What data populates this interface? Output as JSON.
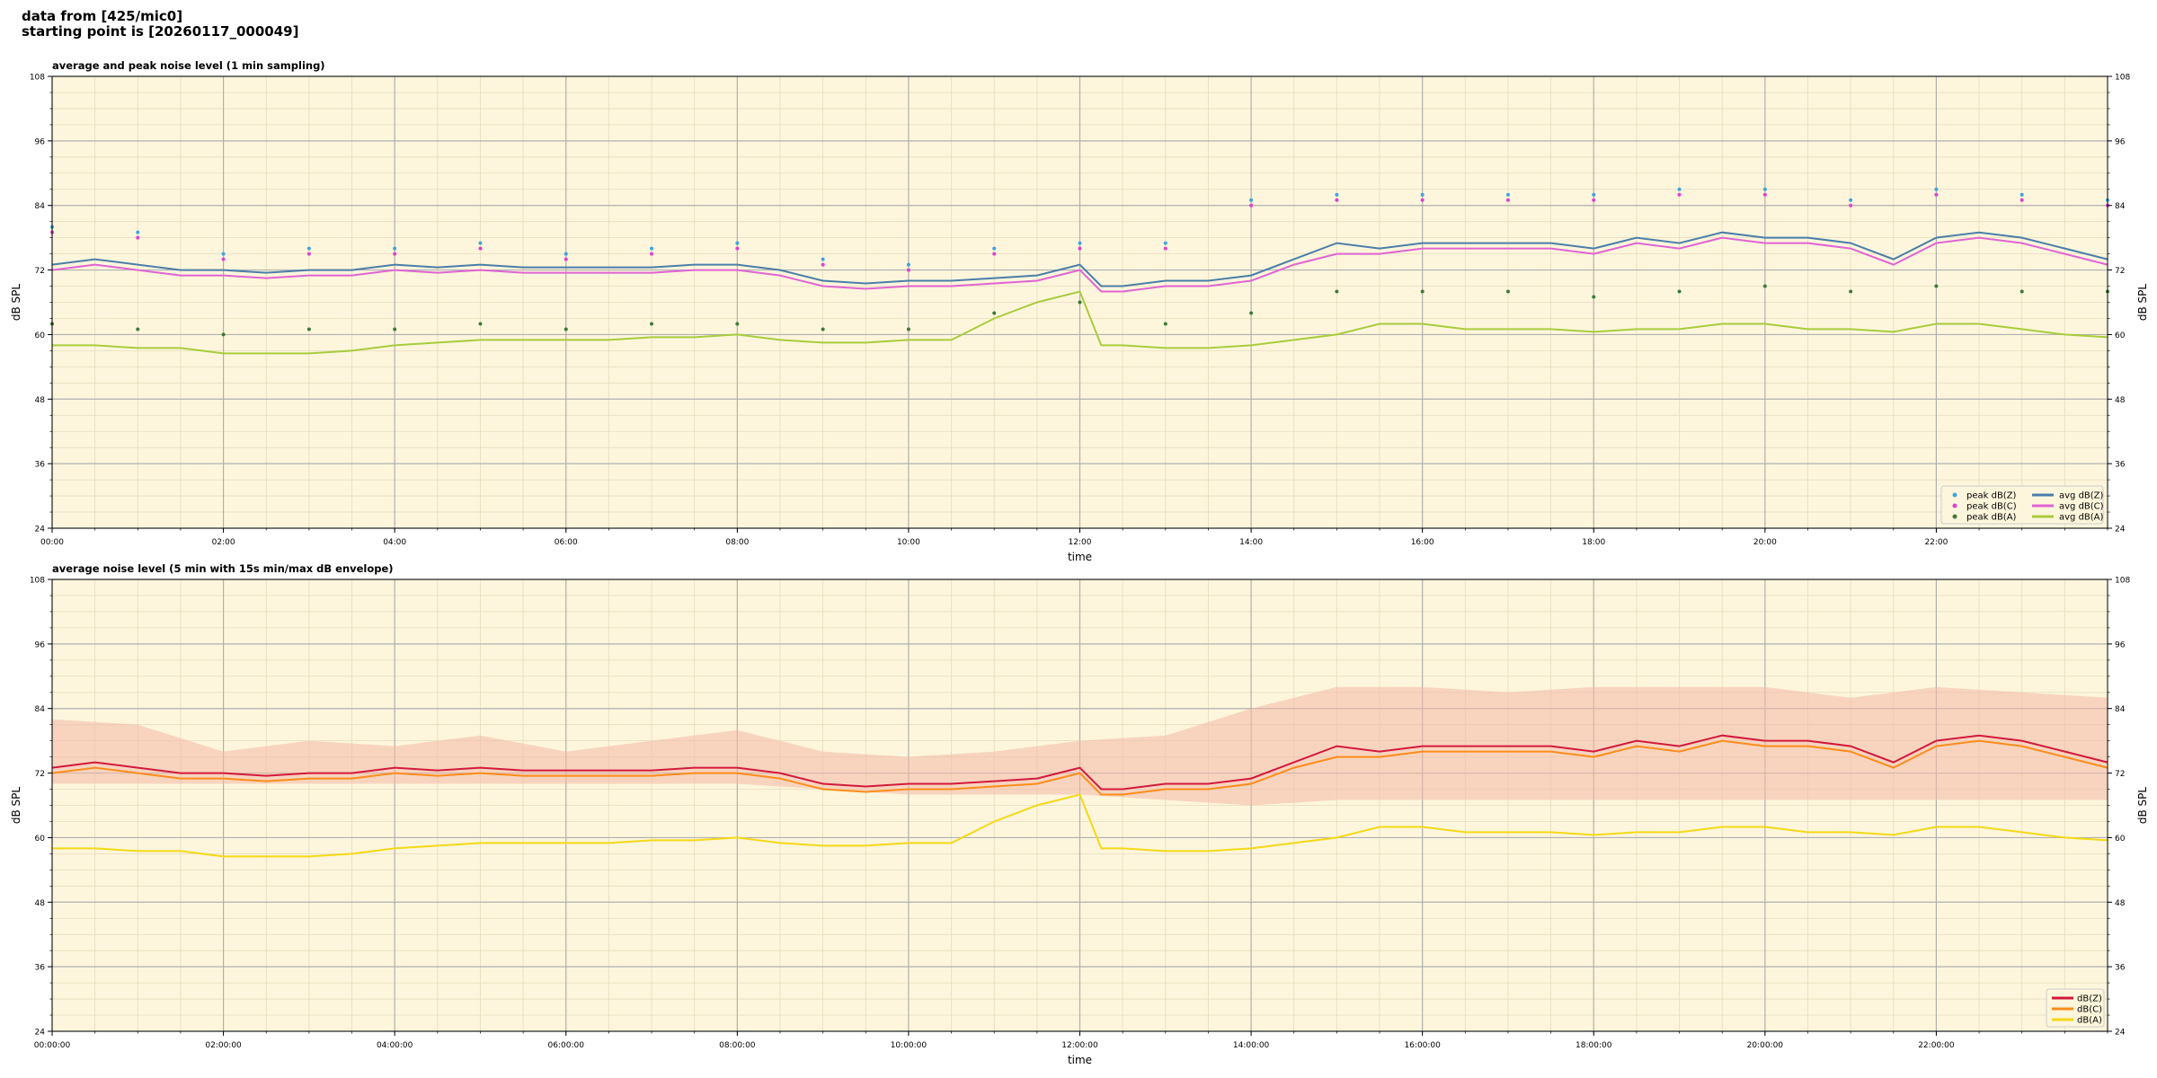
{
  "header": {
    "line1": "data from [425/mic0]",
    "line2": "starting point is [20260117_000049]"
  },
  "chart_data": [
    {
      "type": "line",
      "title": "average and peak noise level (1 min sampling)",
      "xlabel": "time",
      "ylabel": "dB SPL",
      "ylim": [
        24,
        108
      ],
      "yticks": [
        24,
        36,
        48,
        60,
        72,
        84,
        96,
        108
      ],
      "xlim": [
        0,
        24
      ],
      "xticks": [
        "00:00",
        "02:00",
        "04:00",
        "06:00",
        "08:00",
        "10:00",
        "12:00",
        "14:00",
        "16:00",
        "18:00",
        "20:00",
        "22:00"
      ],
      "grid": true,
      "legend_position": "bottom-right",
      "background": "#fdf6dc",
      "series": [
        {
          "name": "peak dB(Z)",
          "kind": "scatter",
          "color": "#3fa4dd",
          "x": [
            0,
            1,
            2,
            3,
            4,
            5,
            6,
            7,
            8,
            9,
            10,
            11,
            12,
            13,
            14,
            15,
            16,
            17,
            18,
            19,
            20,
            21,
            22,
            23,
            24
          ],
          "y": [
            80,
            79,
            75,
            76,
            76,
            77,
            75,
            76,
            77,
            74,
            73,
            76,
            77,
            77,
            85,
            86,
            86,
            86,
            86,
            87,
            87,
            85,
            87,
            86,
            85
          ]
        },
        {
          "name": "peak dB(C)",
          "kind": "scatter",
          "color": "#e040d0",
          "x": [
            0,
            1,
            2,
            3,
            4,
            5,
            6,
            7,
            8,
            9,
            10,
            11,
            12,
            13,
            14,
            15,
            16,
            17,
            18,
            19,
            20,
            21,
            22,
            23,
            24
          ],
          "y": [
            79,
            78,
            74,
            75,
            75,
            76,
            74,
            75,
            76,
            73,
            72,
            75,
            76,
            76,
            84,
            85,
            85,
            85,
            85,
            86,
            86,
            84,
            86,
            85,
            84
          ]
        },
        {
          "name": "peak dB(A)",
          "kind": "scatter",
          "color": "#3d7a3a",
          "x": [
            0,
            1,
            2,
            3,
            4,
            5,
            6,
            7,
            8,
            9,
            10,
            11,
            12,
            13,
            14,
            15,
            16,
            17,
            18,
            19,
            20,
            21,
            22,
            23,
            24
          ],
          "y": [
            62,
            61,
            60,
            61,
            61,
            62,
            61,
            62,
            62,
            61,
            61,
            64,
            66,
            62,
            64,
            68,
            68,
            68,
            67,
            68,
            69,
            68,
            69,
            68,
            68
          ]
        },
        {
          "name": "avg dB(Z)",
          "kind": "line",
          "color": "#4a7eaa",
          "x": [
            0,
            0.5,
            1,
            1.5,
            2,
            2.5,
            3,
            3.5,
            4,
            4.5,
            5,
            5.5,
            6,
            6.5,
            7,
            7.5,
            8,
            8.5,
            9,
            9.5,
            10,
            10.5,
            11,
            11.5,
            12,
            12.25,
            12.5,
            13,
            13.5,
            14,
            14.5,
            15,
            15.5,
            16,
            16.5,
            17,
            17.5,
            18,
            18.5,
            19,
            19.5,
            20,
            20.5,
            21,
            21.5,
            22,
            22.5,
            23,
            23.5,
            24
          ],
          "y": [
            73,
            74,
            73,
            72,
            72,
            71.5,
            72,
            72,
            73,
            72.5,
            73,
            72.5,
            72.5,
            72.5,
            72.5,
            73,
            73,
            72,
            70,
            69.5,
            70,
            70,
            70.5,
            71,
            73,
            69,
            69,
            70,
            70,
            71,
            74,
            77,
            76,
            77,
            77,
            77,
            77,
            76,
            78,
            77,
            79,
            78,
            78,
            77,
            74,
            78,
            79,
            78,
            76,
            74
          ]
        },
        {
          "name": "avg dB(C)",
          "kind": "line",
          "color": "#e064d4",
          "x": [
            0,
            0.5,
            1,
            1.5,
            2,
            2.5,
            3,
            3.5,
            4,
            4.5,
            5,
            5.5,
            6,
            6.5,
            7,
            7.5,
            8,
            8.5,
            9,
            9.5,
            10,
            10.5,
            11,
            11.5,
            12,
            12.25,
            12.5,
            13,
            13.5,
            14,
            14.5,
            15,
            15.5,
            16,
            16.5,
            17,
            17.5,
            18,
            18.5,
            19,
            19.5,
            20,
            20.5,
            21,
            21.5,
            22,
            22.5,
            23,
            23.5,
            24
          ],
          "y": [
            72,
            73,
            72,
            71,
            71,
            70.5,
            71,
            71,
            72,
            71.5,
            72,
            71.5,
            71.5,
            71.5,
            71.5,
            72,
            72,
            71,
            69,
            68.5,
            69,
            69,
            69.5,
            70,
            72,
            68,
            68,
            69,
            69,
            70,
            73,
            75,
            75,
            76,
            76,
            76,
            76,
            75,
            77,
            76,
            78,
            77,
            77,
            76,
            73,
            77,
            78,
            77,
            75,
            73
          ]
        },
        {
          "name": "avg dB(A)",
          "kind": "line",
          "color": "#a8cc3c",
          "x": [
            0,
            0.5,
            1,
            1.5,
            2,
            2.5,
            3,
            3.5,
            4,
            4.5,
            5,
            5.5,
            6,
            6.5,
            7,
            7.5,
            8,
            8.5,
            9,
            9.5,
            10,
            10.5,
            11,
            11.5,
            12,
            12.25,
            12.5,
            13,
            13.5,
            14,
            14.5,
            15,
            15.5,
            16,
            16.5,
            17,
            17.5,
            18,
            18.5,
            19,
            19.5,
            20,
            20.5,
            21,
            21.5,
            22,
            22.5,
            23,
            23.5,
            24
          ],
          "y": [
            58,
            58,
            57.5,
            57.5,
            56.5,
            56.5,
            56.5,
            57,
            58,
            58.5,
            59,
            59,
            59,
            59,
            59.5,
            59.5,
            60,
            59,
            58.5,
            58.5,
            59,
            59,
            63,
            66,
            68,
            58,
            58,
            57.5,
            57.5,
            58,
            59,
            60,
            62,
            62,
            61,
            61,
            61,
            60.5,
            61,
            61,
            62,
            62,
            61,
            61,
            60.5,
            62,
            62,
            61,
            60,
            59.5
          ]
        }
      ]
    },
    {
      "type": "line",
      "title": "average noise level (5 min with 15s min/max dB envelope)",
      "xlabel": "time",
      "ylabel": "dB SPL",
      "ylim": [
        24,
        108
      ],
      "yticks": [
        24,
        36,
        48,
        60,
        72,
        84,
        96,
        108
      ],
      "xlim": [
        0,
        24
      ],
      "xticks": [
        "00:00:00",
        "02:00:00",
        "04:00:00",
        "06:00:00",
        "08:00:00",
        "10:00:00",
        "12:00:00",
        "14:00:00",
        "16:00:00",
        "18:00:00",
        "20:00:00",
        "22:00:00"
      ],
      "grid": true,
      "legend_position": "bottom-right",
      "background": "#fdf6dc",
      "envelope": {
        "color": "#f4b8a8",
        "x": [
          0,
          1,
          2,
          3,
          4,
          5,
          6,
          7,
          8,
          9,
          10,
          11,
          12,
          13,
          14,
          15,
          16,
          17,
          18,
          19,
          20,
          21,
          22,
          23,
          24
        ],
        "min": [
          70,
          70,
          70,
          70,
          70,
          70,
          70,
          70,
          70,
          69,
          68,
          68,
          68,
          67,
          66,
          67,
          67,
          67,
          67,
          67,
          67,
          67,
          67,
          67,
          67
        ],
        "max": [
          82,
          81,
          76,
          78,
          77,
          79,
          76,
          78,
          80,
          76,
          75,
          76,
          78,
          79,
          84,
          88,
          88,
          87,
          88,
          88,
          88,
          86,
          88,
          87,
          86
        ]
      },
      "series": [
        {
          "name": "dB(Z)",
          "kind": "line",
          "color": "#d3193c",
          "x": [
            0,
            0.5,
            1,
            1.5,
            2,
            2.5,
            3,
            3.5,
            4,
            4.5,
            5,
            5.5,
            6,
            6.5,
            7,
            7.5,
            8,
            8.5,
            9,
            9.5,
            10,
            10.5,
            11,
            11.5,
            12,
            12.25,
            12.5,
            13,
            13.5,
            14,
            14.5,
            15,
            15.5,
            16,
            16.5,
            17,
            17.5,
            18,
            18.5,
            19,
            19.5,
            20,
            20.5,
            21,
            21.5,
            22,
            22.5,
            23,
            23.5,
            24
          ],
          "y": [
            73,
            74,
            73,
            72,
            72,
            71.5,
            72,
            72,
            73,
            72.5,
            73,
            72.5,
            72.5,
            72.5,
            72.5,
            73,
            73,
            72,
            70,
            69.5,
            70,
            70,
            70.5,
            71,
            73,
            69,
            69,
            70,
            70,
            71,
            74,
            77,
            76,
            77,
            77,
            77,
            77,
            76,
            78,
            77,
            79,
            78,
            78,
            77,
            74,
            78,
            79,
            78,
            76,
            74
          ]
        },
        {
          "name": "dB(C)",
          "kind": "line",
          "color": "#ff8c1a",
          "x": [
            0,
            0.5,
            1,
            1.5,
            2,
            2.5,
            3,
            3.5,
            4,
            4.5,
            5,
            5.5,
            6,
            6.5,
            7,
            7.5,
            8,
            8.5,
            9,
            9.5,
            10,
            10.5,
            11,
            11.5,
            12,
            12.25,
            12.5,
            13,
            13.5,
            14,
            14.5,
            15,
            15.5,
            16,
            16.5,
            17,
            17.5,
            18,
            18.5,
            19,
            19.5,
            20,
            20.5,
            21,
            21.5,
            22,
            22.5,
            23,
            23.5,
            24
          ],
          "y": [
            72,
            73,
            72,
            71,
            71,
            70.5,
            71,
            71,
            72,
            71.5,
            72,
            71.5,
            71.5,
            71.5,
            71.5,
            72,
            72,
            71,
            69,
            68.5,
            69,
            69,
            69.5,
            70,
            72,
            68,
            68,
            69,
            69,
            70,
            73,
            75,
            75,
            76,
            76,
            76,
            76,
            75,
            77,
            76,
            78,
            77,
            77,
            76,
            73,
            77,
            78,
            77,
            75,
            73
          ]
        },
        {
          "name": "dB(A)",
          "kind": "line",
          "color": "#f5d816",
          "x": [
            0,
            0.5,
            1,
            1.5,
            2,
            2.5,
            3,
            3.5,
            4,
            4.5,
            5,
            5.5,
            6,
            6.5,
            7,
            7.5,
            8,
            8.5,
            9,
            9.5,
            10,
            10.5,
            11,
            11.5,
            12,
            12.25,
            12.5,
            13,
            13.5,
            14,
            14.5,
            15,
            15.5,
            16,
            16.5,
            17,
            17.5,
            18,
            18.5,
            19,
            19.5,
            20,
            20.5,
            21,
            21.5,
            22,
            22.5,
            23,
            23.5,
            24
          ],
          "y": [
            58,
            58,
            57.5,
            57.5,
            56.5,
            56.5,
            56.5,
            57,
            58,
            58.5,
            59,
            59,
            59,
            59,
            59.5,
            59.5,
            60,
            59,
            58.5,
            58.5,
            59,
            59,
            63,
            66,
            68,
            58,
            58,
            57.5,
            57.5,
            58,
            59,
            60,
            62,
            62,
            61,
            61,
            61,
            60.5,
            61,
            61,
            62,
            62,
            61,
            61,
            60.5,
            62,
            62,
            61,
            60,
            59.5
          ]
        }
      ]
    }
  ]
}
